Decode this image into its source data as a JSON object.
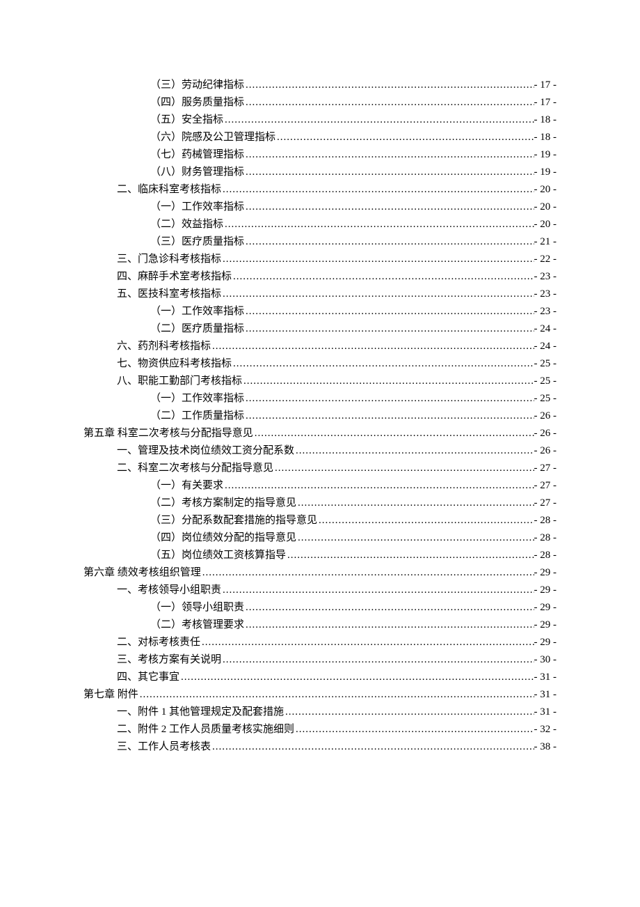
{
  "toc": {
    "text_color": "#000000",
    "background_color": "#ffffff",
    "font_family": "SimSun",
    "base_fontsize": 15,
    "line_height": 25,
    "entries": [
      {
        "indent": 2,
        "label": "（三）劳动纪律指标",
        "page": "- 17 -"
      },
      {
        "indent": 2,
        "label": "（四）服务质量指标",
        "page": "- 17 -"
      },
      {
        "indent": 2,
        "label": "（五）安全指标",
        "page": "- 18 -"
      },
      {
        "indent": 2,
        "label": "（六）院感及公卫管理指标",
        "page": "- 18 -"
      },
      {
        "indent": 2,
        "label": "（七）药械管理指标",
        "page": "- 19 -"
      },
      {
        "indent": 2,
        "label": "（八）财务管理指标",
        "page": "- 19 -"
      },
      {
        "indent": 1,
        "label": "二、临床科室考核指标 ",
        "page": "- 20 -"
      },
      {
        "indent": 2,
        "label": "（一）工作效率指标",
        "page": "- 20 -"
      },
      {
        "indent": 2,
        "label": "（二）效益指标",
        "page": "- 20 -"
      },
      {
        "indent": 2,
        "label": "（三）医疗质量指标",
        "page": "- 21 -"
      },
      {
        "indent": 1,
        "label": "三、门急诊科考核指标 ",
        "page": "- 22 -"
      },
      {
        "indent": 1,
        "label": "四、麻醉手术室考核指标 ",
        "page": "- 23 -"
      },
      {
        "indent": 1,
        "label": "五、医技科室考核指标 ",
        "page": "- 23 -"
      },
      {
        "indent": 2,
        "label": "（一）工作效率指标",
        "page": "- 23 -"
      },
      {
        "indent": 2,
        "label": "（二）医疗质量指标",
        "page": "- 24 -"
      },
      {
        "indent": 1,
        "label": "六、药剂科考核指标 ",
        "page": "- 24 -"
      },
      {
        "indent": 1,
        "label": "七、物资供应科考核指标 ",
        "page": "- 25 -"
      },
      {
        "indent": 1,
        "label": "八、职能工勤部门考核指标 ",
        "page": "- 25 -"
      },
      {
        "indent": 2,
        "label": "（一）工作效率指标",
        "page": "- 25 -"
      },
      {
        "indent": 2,
        "label": "（二）工作质量指标",
        "page": "- 26 -"
      },
      {
        "indent": 0,
        "label": "第五章    科室二次考核与分配指导意见",
        "page": "- 26 -"
      },
      {
        "indent": 1,
        "label": "一、管理及技术岗位绩效工资分配系数 ",
        "page": "- 26 -"
      },
      {
        "indent": 1,
        "label": "二、科室二次考核与分配指导意见 ",
        "page": "- 27 -"
      },
      {
        "indent": 2,
        "label": "（一）有关要求",
        "page": "- 27 -"
      },
      {
        "indent": 2,
        "label": "（二）考核方案制定的指导意见",
        "page": "- 27 -"
      },
      {
        "indent": 2,
        "label": "（三）分配系数配套措施的指导意见",
        "page": "- 28 -"
      },
      {
        "indent": 2,
        "label": "（四）岗位绩效分配的指导意见",
        "page": "- 28 -"
      },
      {
        "indent": 2,
        "label": "（五）岗位绩效工资核算指导",
        "page": "- 28 -"
      },
      {
        "indent": 0,
        "label": "第六章    绩效考核组织管理",
        "page": "- 29 -"
      },
      {
        "indent": 1,
        "label": "一、考核领导小组职责 ",
        "page": "- 29 -"
      },
      {
        "indent": 2,
        "label": "（一）领导小组职责",
        "page": "- 29 -"
      },
      {
        "indent": 2,
        "label": "（二）考核管理要求",
        "page": "- 29 -"
      },
      {
        "indent": 1,
        "label": "二、对标考核责任 ",
        "page": "- 29 -"
      },
      {
        "indent": 1,
        "label": "三、考核方案有关说明 ",
        "page": "- 30 -"
      },
      {
        "indent": 1,
        "label": "四、其它事宜 ",
        "page": "- 31 -"
      },
      {
        "indent": 0,
        "label": "第七章    附件",
        "page": "- 31 -"
      },
      {
        "indent": 1,
        "label": "一、附件 1  其他管理规定及配套措施",
        "page": "- 31 -"
      },
      {
        "indent": 1,
        "label": "二、附件 2  工作人员质量考核实施细则",
        "page": "- 32 -"
      },
      {
        "indent": 1,
        "label": "三、工作人员考核表 ",
        "page": "- 38 -"
      }
    ]
  }
}
